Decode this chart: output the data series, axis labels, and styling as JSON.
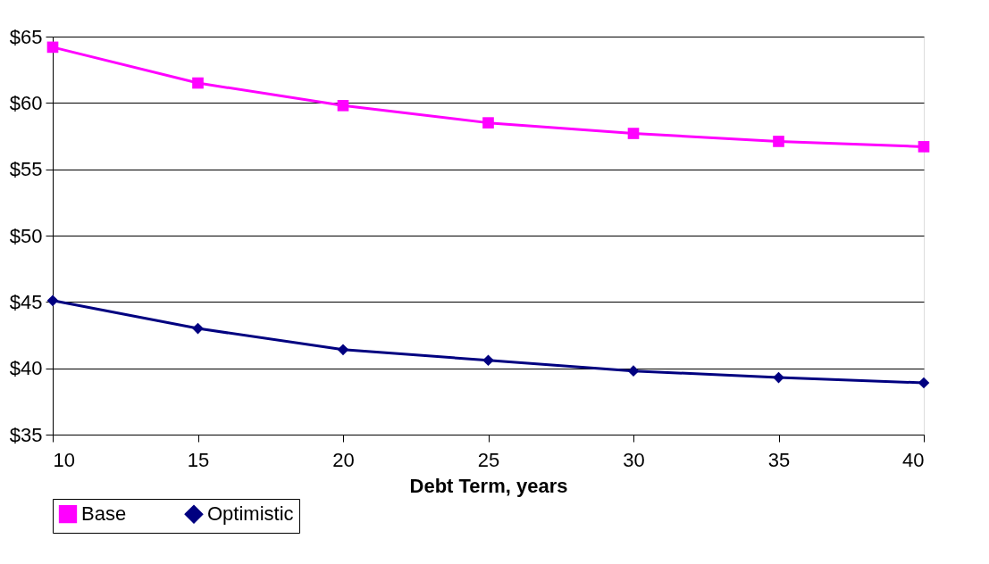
{
  "chart_data": {
    "type": "line",
    "xlabel": "Debt Term, years",
    "x": [
      10,
      15,
      20,
      25,
      30,
      35,
      40
    ],
    "series": [
      {
        "name": "Base",
        "color": "#ff00ff",
        "marker": "square",
        "values": [
          64.2,
          61.5,
          59.8,
          58.5,
          57.7,
          57.1,
          56.7
        ]
      },
      {
        "name": "Optimistic",
        "color": "#000080",
        "marker": "diamond",
        "values": [
          45.1,
          43.0,
          41.4,
          40.6,
          39.8,
          39.3,
          38.9
        ]
      }
    ],
    "xlim": [
      10,
      40
    ],
    "xticks": [
      10,
      15,
      20,
      25,
      30,
      35,
      40
    ],
    "ylim": [
      35,
      65
    ],
    "yticks": [
      {
        "value": 35,
        "label": "$35"
      },
      {
        "value": 40,
        "label": "$40"
      },
      {
        "value": 45,
        "label": "$45"
      },
      {
        "value": 50,
        "label": "$50"
      },
      {
        "value": 55,
        "label": "$55"
      },
      {
        "value": 60,
        "label": "$60"
      },
      {
        "value": 65,
        "label": "$65"
      }
    ],
    "grid": "y",
    "legend": "bottom",
    "line_style": "solid"
  }
}
